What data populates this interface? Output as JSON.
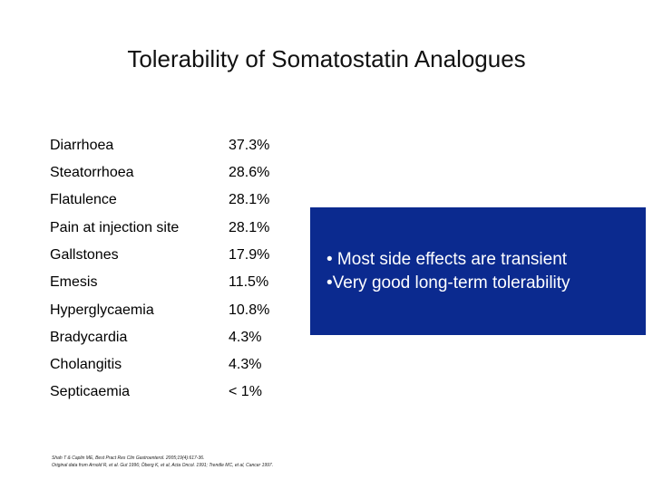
{
  "slide": {
    "title": "Tolerability of Somatostatin Analogues",
    "side_effects": [
      {
        "name": "Diarrhoea",
        "value": "37.3%"
      },
      {
        "name": "Steatorrhoea",
        "value": "28.6%"
      },
      {
        "name": "Flatulence",
        "value": "28.1%"
      },
      {
        "name": "Pain at injection site",
        "value": "28.1%"
      },
      {
        "name": "Gallstones",
        "value": "17.9%"
      },
      {
        "name": "Emesis",
        "value": "11.5%"
      },
      {
        "name": "Hyperglycaemia",
        "value": "10.8%"
      },
      {
        "name": "Bradycardia",
        "value": "4.3%"
      },
      {
        "name": "Cholangitis",
        "value": "4.3%"
      },
      {
        "name": "Septicaemia",
        "value": "< 1%"
      }
    ],
    "callout": {
      "bullets": [
        "• Most side effects are transient",
        "•Very good long-term tolerability"
      ],
      "color": "#0b2a8f"
    },
    "references": [
      "Shah T & Caplin ME, Best Pract Res Clin Gastroenterol. 2005;19(4):617-36.",
      "Original data from Arnold R, et al. Gut 1996; Öberg K, et al, Acta Oncol. 1991; Trendle MC, et al, Cancer 1997."
    ]
  }
}
